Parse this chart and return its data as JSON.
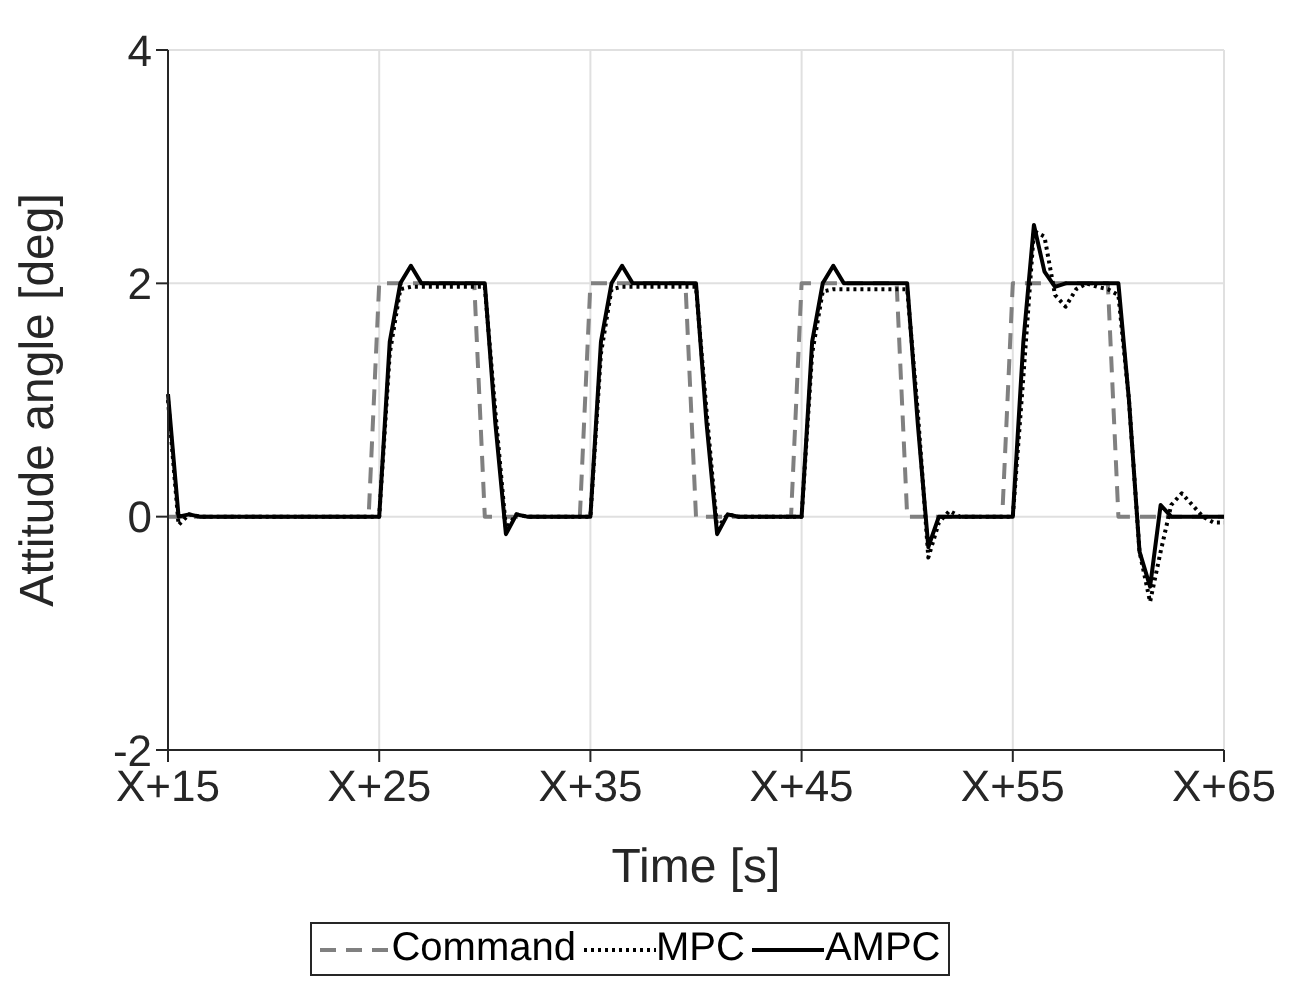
{
  "chart_data": {
    "type": "line",
    "xlabel": "Time [s]",
    "ylabel": "Attitude angle [deg]",
    "categories": [
      "X+15",
      null,
      null,
      null,
      null,
      null,
      null,
      null,
      null,
      null,
      null,
      null,
      null,
      null,
      null,
      null,
      null,
      null,
      null,
      null,
      "X+25",
      null,
      null,
      null,
      null,
      null,
      null,
      null,
      null,
      null,
      null,
      null,
      null,
      null,
      null,
      null,
      null,
      null,
      null,
      null,
      "X+35",
      null,
      null,
      null,
      null,
      null,
      null,
      null,
      null,
      null,
      null,
      null,
      null,
      null,
      null,
      null,
      null,
      null,
      null,
      null,
      "X+45",
      null,
      null,
      null,
      null,
      null,
      null,
      null,
      null,
      null,
      null,
      null,
      null,
      null,
      null,
      null,
      null,
      null,
      null,
      null,
      "X+55",
      null,
      null,
      null,
      null,
      null,
      null,
      null,
      null,
      null,
      null,
      null,
      null,
      null,
      null,
      null,
      null,
      null,
      null,
      null,
      "X+65"
    ],
    "ylim": [
      -2,
      4
    ],
    "yticks": [
      -2,
      0,
      2,
      4
    ],
    "grid": true,
    "legend": "bottom",
    "marker": "none",
    "series": [
      {
        "name": "Command",
        "color": "#808080",
        "line_style": "dashed",
        "values": [
          0,
          0,
          0,
          0,
          0,
          0,
          0,
          0,
          0,
          0,
          0,
          0,
          0,
          0,
          0,
          0,
          0,
          0,
          0,
          0,
          2,
          2,
          2,
          2,
          2,
          2,
          2,
          2,
          2,
          2,
          0,
          0,
          0,
          0,
          0,
          0,
          0,
          0,
          0,
          0,
          2,
          2,
          2,
          2,
          2,
          2,
          2,
          2,
          2,
          2,
          0,
          0,
          0,
          0,
          0,
          0,
          0,
          0,
          0,
          0,
          2,
          2,
          2,
          2,
          2,
          2,
          2,
          2,
          2,
          2,
          0,
          0,
          0,
          0,
          0,
          0,
          0,
          0,
          0,
          0,
          2,
          2,
          2,
          2,
          2,
          2,
          2,
          2,
          2,
          2,
          0,
          0,
          0,
          0,
          0,
          0,
          0,
          0,
          0,
          0,
          0
        ]
      },
      {
        "name": "MPC",
        "color": "#000000",
        "line_style": "dotted",
        "values": [
          1,
          -0.07,
          0.02,
          0,
          0,
          0,
          0,
          0,
          0,
          0,
          0,
          0,
          0,
          0,
          0,
          0,
          0,
          0,
          0,
          0,
          0,
          1.4,
          1.95,
          1.97,
          1.97,
          1.97,
          1.97,
          1.97,
          1.97,
          1.97,
          1.97,
          0.9,
          -0.1,
          0.02,
          0,
          0,
          0,
          0,
          0,
          0,
          0,
          1.4,
          1.95,
          1.97,
          1.97,
          1.97,
          1.97,
          1.97,
          1.97,
          1.97,
          1.97,
          0.9,
          -0.1,
          0.02,
          0,
          0,
          0,
          0,
          0,
          0,
          0,
          1.4,
          1.93,
          1.95,
          1.95,
          1.95,
          1.95,
          1.95,
          1.95,
          1.95,
          1.95,
          0.9,
          -0.35,
          -0.05,
          0.05,
          0,
          0,
          0,
          0,
          0,
          0,
          1.2,
          2.45,
          2.4,
          1.9,
          1.8,
          1.95,
          2,
          1.97,
          1.95,
          1.9,
          1,
          -0.3,
          -0.73,
          -0.3,
          0.1,
          0.2,
          0.1,
          0,
          -0.05,
          -0.05
        ]
      },
      {
        "name": "AMPC",
        "color": "#000000",
        "line_style": "solid",
        "values": [
          1.05,
          0,
          0.02,
          0,
          0,
          0,
          0,
          0,
          0,
          0,
          0,
          0,
          0,
          0,
          0,
          0,
          0,
          0,
          0,
          0,
          0,
          1.5,
          2,
          2.15,
          2,
          2,
          2,
          2,
          2,
          2,
          2,
          0.8,
          -0.15,
          0.02,
          0,
          0,
          0,
          0,
          0,
          0,
          0,
          1.5,
          2,
          2.15,
          2,
          2,
          2,
          2,
          2,
          2,
          2,
          0.8,
          -0.15,
          0.02,
          0,
          0,
          0,
          0,
          0,
          0,
          0,
          1.5,
          2,
          2.15,
          2,
          2,
          2,
          2,
          2,
          2,
          2,
          0.8,
          -0.26,
          0,
          0,
          0,
          0,
          0,
          0,
          0,
          0,
          1.5,
          2.5,
          2.1,
          1.97,
          2,
          2,
          2,
          2,
          2,
          2,
          1,
          -0.3,
          -0.6,
          0.1,
          0,
          0,
          0,
          0,
          0,
          0
        ]
      }
    ]
  }
}
